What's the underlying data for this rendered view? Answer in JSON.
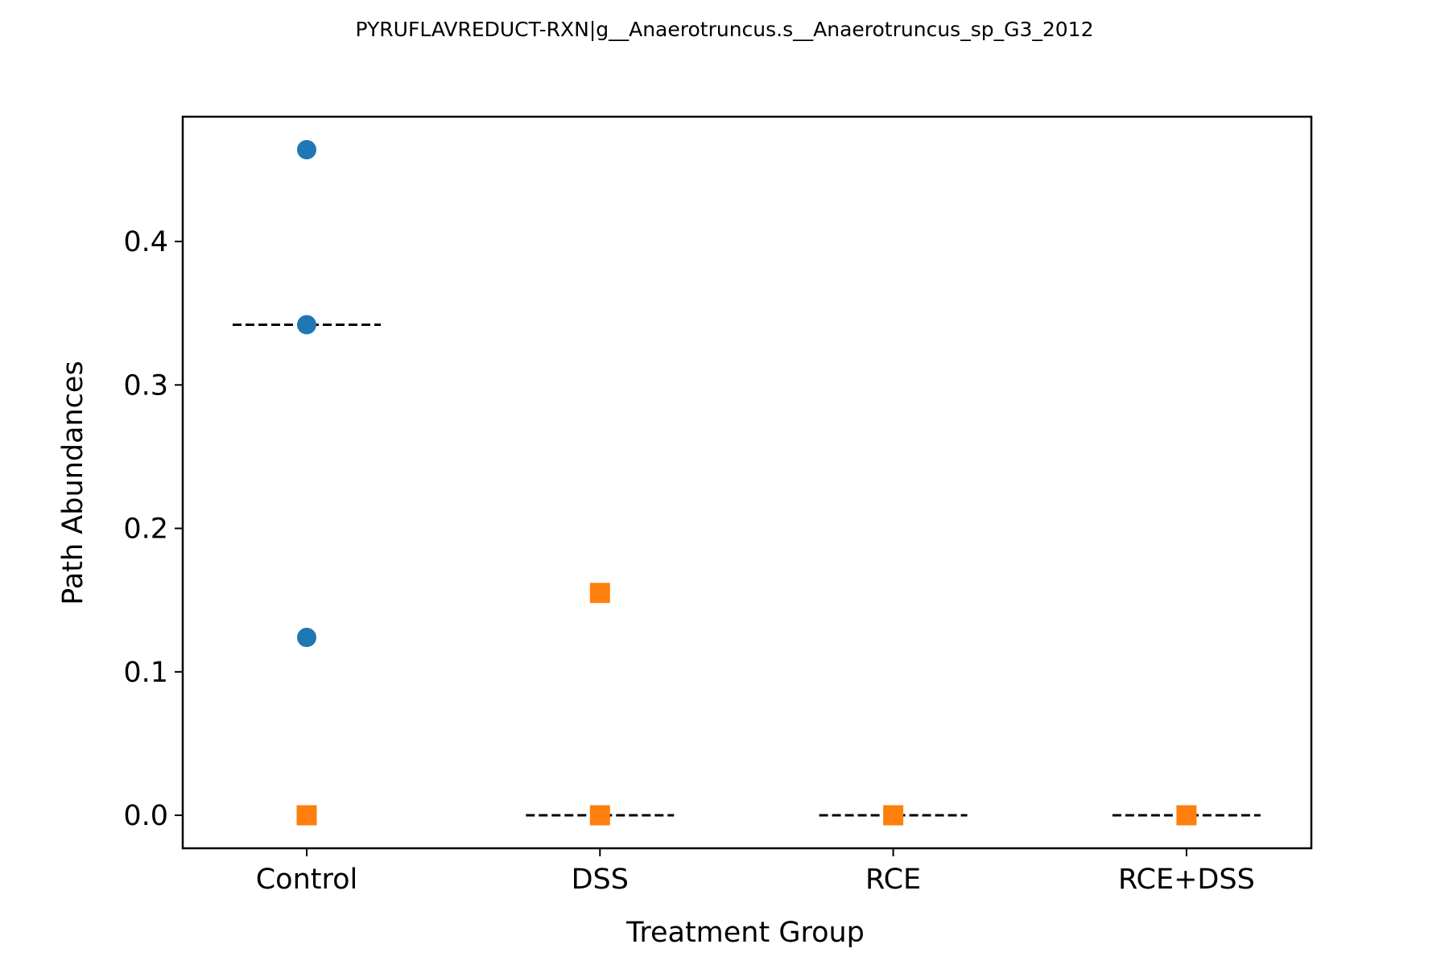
{
  "chart_data": {
    "type": "scatter",
    "title": "PYRUFLAVREDUCT-RXN|g__Anaerotruncus.s__Anaerotruncus_sp_G3_2012",
    "xlabel": "Treatment Group",
    "ylabel": "Path Abundances",
    "categories": [
      "Control",
      "DSS",
      "RCE",
      "RCE+DSS"
    ],
    "ylim": [
      -0.023,
      0.487
    ],
    "yticks": [
      0.0,
      0.1,
      0.2,
      0.3,
      0.4
    ],
    "ytick_labels": [
      "0.0",
      "0.1",
      "0.2",
      "0.3",
      "0.4"
    ],
    "grid": false,
    "series": [
      {
        "marker": "circle",
        "color": "#1f77b4",
        "points": [
          {
            "category": "Control",
            "y": 0.464
          },
          {
            "category": "Control",
            "y": 0.342
          },
          {
            "category": "Control",
            "y": 0.124
          }
        ]
      },
      {
        "marker": "square",
        "color": "#ff7f0e",
        "points": [
          {
            "category": "Control",
            "y": 0.0
          },
          {
            "category": "DSS",
            "y": 0.155
          },
          {
            "category": "DSS",
            "y": 0.0
          },
          {
            "category": "RCE",
            "y": 0.0
          },
          {
            "category": "RCE+DSS",
            "y": 0.0
          }
        ]
      }
    ],
    "medians": [
      {
        "category": "Control",
        "y": 0.342
      },
      {
        "category": "DSS",
        "y": 0.0
      },
      {
        "category": "RCE",
        "y": 0.0
      },
      {
        "category": "RCE+DSS",
        "y": 0.0
      }
    ]
  }
}
